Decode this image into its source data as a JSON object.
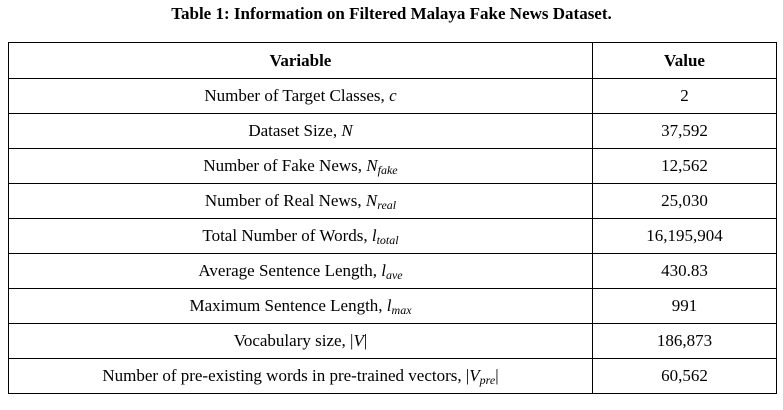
{
  "caption": "Table 1: Information  on Filtered Malaya Fake News Dataset.",
  "table": {
    "headers": {
      "variable": "Variable",
      "value": "Value"
    },
    "rows": [
      {
        "label": "Number of Target Classes, ",
        "symbol": "c",
        "subscript": "",
        "suffix": "",
        "value": "2"
      },
      {
        "label": "Dataset Size, ",
        "symbol": "N",
        "subscript": "",
        "suffix": "",
        "value": "37,592"
      },
      {
        "label": "Number of Fake News, ",
        "symbol": "N",
        "subscript": "fake",
        "suffix": "",
        "value": "12,562"
      },
      {
        "label": "Number of Real News, ",
        "symbol": "N",
        "subscript": "real",
        "suffix": "",
        "value": "25,030"
      },
      {
        "label": "Total Number of Words, ",
        "symbol": "l",
        "subscript": "total",
        "suffix": "",
        "value": "16,195,904"
      },
      {
        "label": "Average Sentence Length, ",
        "symbol": "l",
        "subscript": "ave",
        "suffix": "",
        "value": "430.83"
      },
      {
        "label": "Maximum Sentence Length, ",
        "symbol": "l",
        "subscript": "max",
        "suffix": "",
        "value": "991"
      },
      {
        "label": "Vocabulary size, |",
        "symbol": "V",
        "subscript": "",
        "suffix": "|",
        "value": "186,873"
      },
      {
        "label": "Number of pre-existing words in pre-trained vectors, |",
        "symbol": "V",
        "subscript": "pre",
        "suffix": "|",
        "value": "60,562"
      }
    ]
  }
}
